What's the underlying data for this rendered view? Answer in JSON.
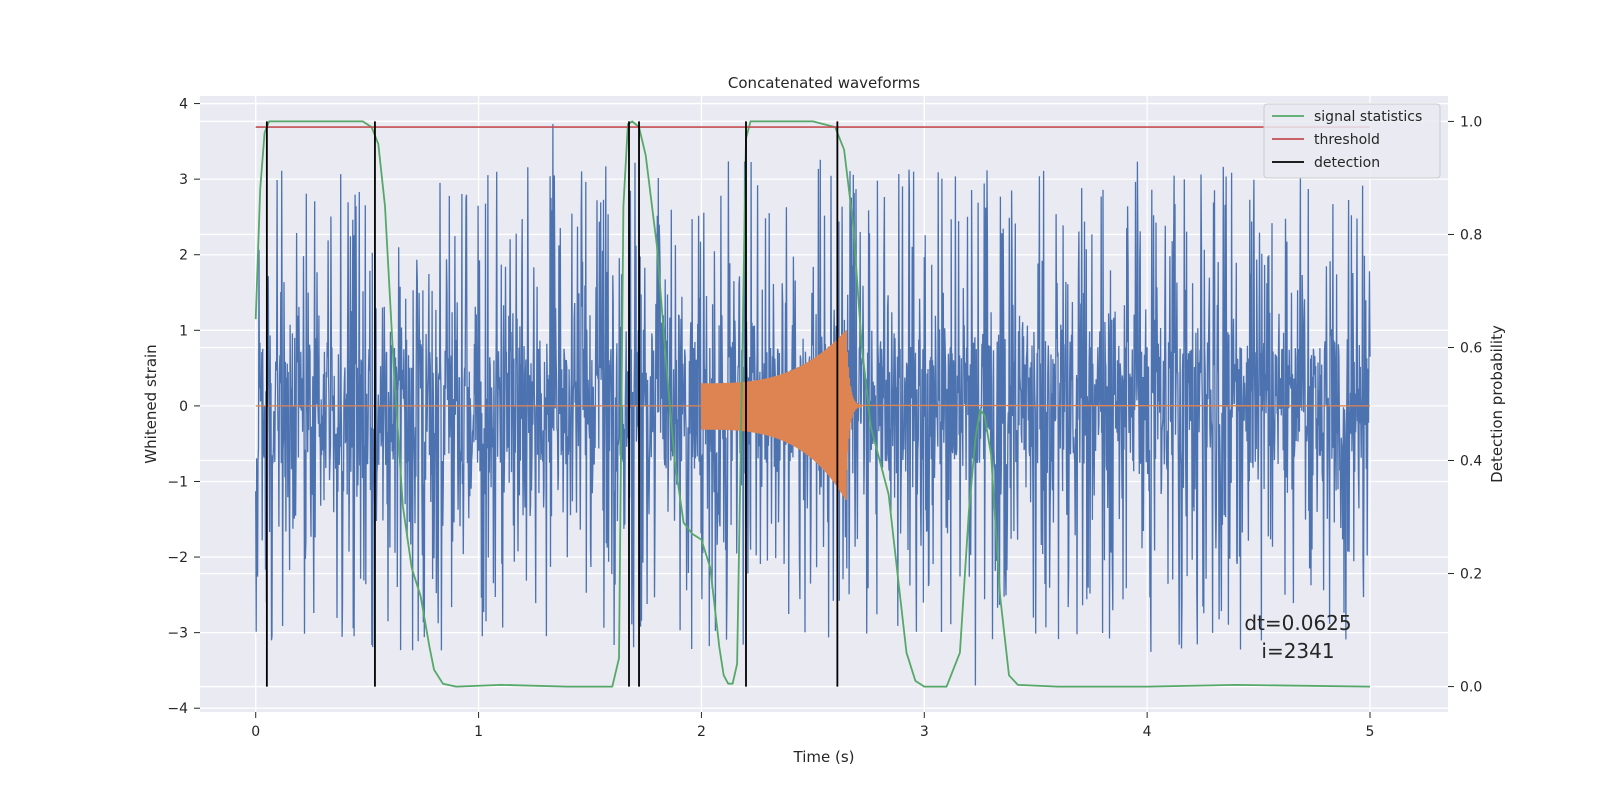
{
  "chart_data": {
    "type": "line",
    "title": "Concatenated waveforms",
    "xlabel": "Time (s)",
    "ylabel": "Whitened strain",
    "y2label": "Detection probability",
    "xlim": [
      -0.25,
      5.35
    ],
    "ylim": [
      -4.05,
      4.1
    ],
    "y2lim": [
      -0.045,
      1.045
    ],
    "xticks": [
      0,
      1,
      2,
      3,
      4,
      5
    ],
    "yticks": [
      -4,
      -3,
      -2,
      -1,
      0,
      1,
      2,
      3,
      4
    ],
    "y2ticks": [
      0.0,
      0.2,
      0.4,
      0.6,
      0.8,
      1.0
    ],
    "grid": true,
    "legend_position": "top-right",
    "colors": {
      "strain": "#4c72b0",
      "template": "#dd8452",
      "statistics": "#55a868",
      "threshold": "#c44e52",
      "detection": "#000000",
      "axes_bg": "#eaeaf2",
      "grid": "#ffffff"
    },
    "series": [
      {
        "name": "signal statistics",
        "axis": "right",
        "x": [
          0.0,
          0.02,
          0.04,
          0.06,
          0.08,
          0.1,
          0.3,
          0.48,
          0.52,
          0.55,
          0.58,
          0.62,
          0.66,
          0.7,
          0.74,
          0.78,
          0.8,
          0.84,
          0.9,
          1.1,
          1.4,
          1.6,
          1.63,
          1.65,
          1.67,
          1.69,
          1.72,
          1.75,
          1.8,
          1.84,
          1.88,
          1.92,
          1.96,
          2.0,
          2.04,
          2.08,
          2.1,
          2.12,
          2.14,
          2.16,
          2.18,
          2.2,
          2.22,
          2.3,
          2.5,
          2.6,
          2.64,
          2.68,
          2.72,
          2.76,
          2.8,
          2.84,
          2.88,
          2.92,
          2.96,
          3.0,
          3.1,
          3.16,
          3.2,
          3.23,
          3.25,
          3.27,
          3.3,
          3.34,
          3.38,
          3.42,
          3.6,
          4.0,
          4.4,
          5.0
        ],
        "y": [
          0.65,
          0.88,
          0.98,
          1.0,
          1.0,
          1.0,
          1.0,
          1.0,
          0.99,
          0.96,
          0.85,
          0.56,
          0.32,
          0.21,
          0.16,
          0.07,
          0.03,
          0.005,
          0.0,
          0.003,
          0.0,
          0.0,
          0.05,
          0.85,
          0.995,
          1.0,
          0.99,
          0.94,
          0.78,
          0.58,
          0.4,
          0.29,
          0.27,
          0.26,
          0.21,
          0.07,
          0.02,
          0.005,
          0.005,
          0.04,
          0.5,
          0.97,
          1.0,
          1.0,
          1.0,
          0.99,
          0.95,
          0.82,
          0.6,
          0.46,
          0.4,
          0.34,
          0.2,
          0.06,
          0.01,
          0.0,
          0.0,
          0.06,
          0.31,
          0.44,
          0.49,
          0.48,
          0.41,
          0.16,
          0.02,
          0.003,
          0.0,
          0.0,
          0.003,
          0.0
        ]
      },
      {
        "name": "threshold",
        "axis": "right",
        "x": [
          0.0,
          5.0
        ],
        "y": [
          0.99,
          0.99
        ]
      },
      {
        "name": "detection",
        "axis": "right",
        "x": [
          0.05,
          0.535,
          1.675,
          1.72,
          2.2,
          2.61
        ],
        "y_from": 0.0,
        "y_to": 1.0
      },
      {
        "name": "",
        "axis": "left",
        "x_range": [
          0.0,
          5.0
        ],
        "core_amplitude": 0.75,
        "spike_max": 3.7,
        "y_min": -3.7,
        "y_max": 3.73
      },
      {
        "name": "",
        "axis": "left",
        "x_start": 2.0,
        "x_peak": 2.65,
        "x_end": 2.72,
        "amplitude_start": 0.3,
        "amplitude_peak": 1.0,
        "amplitude_trough": -1.25
      }
    ],
    "annotations": [
      "dt=0.0625",
      "i=2341"
    ]
  }
}
